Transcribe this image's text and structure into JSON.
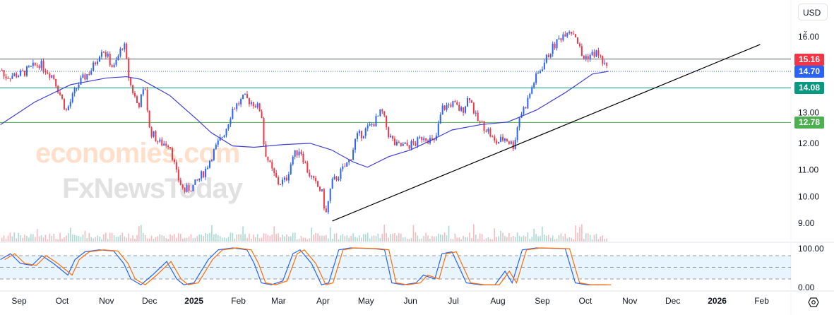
{
  "header": {
    "currency": "USD"
  },
  "watermark": {
    "line1": "economies.com",
    "line2": "FxNewsToday"
  },
  "chart_data": {
    "type": "candlestick",
    "colors": {
      "up": "#2962ff",
      "down": "#f23645",
      "ma": "#3f3fd6",
      "trendline": "#000000"
    },
    "x_start": "2024-09-01",
    "price_path_days_prices": [
      [
        -11,
        14.5
      ],
      [
        1.5,
        14.6
      ],
      [
        14,
        15.0
      ],
      [
        24,
        14.5
      ],
      [
        33,
        13.2
      ],
      [
        41,
        14.2
      ],
      [
        51,
        14.8
      ],
      [
        58,
        15.6
      ],
      [
        66,
        14.8
      ],
      [
        73,
        15.8
      ],
      [
        77,
        14.3
      ],
      [
        83,
        13.4
      ],
      [
        88,
        14.1
      ],
      [
        91,
        12.5
      ],
      [
        98,
        12.0
      ],
      [
        105,
        12.0
      ],
      [
        110,
        10.8
      ],
      [
        115,
        10.2
      ],
      [
        122,
        10.4
      ],
      [
        130,
        11.0
      ],
      [
        134,
        11.5
      ],
      [
        139,
        12.0
      ],
      [
        144,
        12.5
      ],
      [
        149,
        13.3
      ],
      [
        157,
        13.7
      ],
      [
        164,
        13.5
      ],
      [
        169,
        13.2
      ],
      [
        171,
        11.8
      ],
      [
        176,
        11.0
      ],
      [
        181,
        10.5
      ],
      [
        186,
        10.6
      ],
      [
        191,
        11.5
      ],
      [
        196,
        11.8
      ],
      [
        201,
        11.0
      ],
      [
        206,
        10.5
      ],
      [
        211,
        10.2
      ],
      [
        214,
        9.3
      ],
      [
        218,
        10.5
      ],
      [
        223,
        10.8
      ],
      [
        231,
        11.4
      ],
      [
        235,
        12.2
      ],
      [
        240,
        12.4
      ],
      [
        248,
        12.8
      ],
      [
        253,
        13.2
      ],
      [
        258,
        12.3
      ],
      [
        263,
        11.9
      ],
      [
        270,
        11.9
      ],
      [
        277,
        12.0
      ],
      [
        282,
        12.3
      ],
      [
        290,
        12.0
      ],
      [
        295,
        13.3
      ],
      [
        302,
        13.5
      ],
      [
        309,
        13.2
      ],
      [
        314,
        13.8
      ],
      [
        319,
        12.9
      ],
      [
        327,
        12.5
      ],
      [
        332,
        12.0
      ],
      [
        339,
        12.2
      ],
      [
        345,
        11.9
      ],
      [
        349,
        13.0
      ],
      [
        354,
        13.5
      ],
      [
        359,
        14.3
      ],
      [
        364,
        14.8
      ],
      [
        371,
        15.5
      ],
      [
        378,
        16.0
      ],
      [
        383,
        16.3
      ],
      [
        388,
        16.1
      ],
      [
        393,
        15.2
      ],
      [
        398,
        15.3
      ],
      [
        403,
        15.4
      ],
      [
        408,
        15.0
      ],
      [
        410,
        14.75
      ]
    ],
    "ma_path_days_prices": [
      [
        -13,
        12.7
      ],
      [
        11,
        13.55
      ],
      [
        36,
        14.2
      ],
      [
        61,
        14.45
      ],
      [
        75,
        14.5
      ],
      [
        85,
        14.4
      ],
      [
        105,
        13.8
      ],
      [
        124,
        12.9
      ],
      [
        134,
        12.4
      ],
      [
        149,
        11.9
      ],
      [
        164,
        11.85
      ],
      [
        184,
        11.95
      ],
      [
        203,
        12.0
      ],
      [
        218,
        11.75
      ],
      [
        233,
        11.3
      ],
      [
        243,
        11.1
      ],
      [
        258,
        11.5
      ],
      [
        273,
        11.75
      ],
      [
        287,
        12.1
      ],
      [
        302,
        12.5
      ],
      [
        322,
        12.7
      ],
      [
        341,
        12.8
      ],
      [
        361,
        13.25
      ],
      [
        381,
        13.9
      ],
      [
        400,
        14.6
      ],
      [
        411,
        14.7
      ]
    ],
    "trendline": {
      "from": [
        "2025-04-07",
        9.08
      ],
      "to": [
        "2026-02-03",
        15.71
      ]
    },
    "levels": [
      {
        "label": "15.16",
        "value": 15.16,
        "color": "#f23645",
        "line": "#5d606b",
        "style": "solid"
      },
      {
        "label": "14.70",
        "value": 14.7,
        "color": "#2962ff",
        "line": "#2962ff",
        "style": "dotted"
      },
      {
        "label": "14.08",
        "value": 14.08,
        "color": "#089981",
        "line": "#089981",
        "style": "solid"
      },
      {
        "label": "12.78",
        "value": 12.78,
        "color": "#4caf50",
        "line": "#4caf50",
        "style": "solid"
      }
    ],
    "y_ticks": [
      "16.00",
      "13.00",
      "12.00",
      "11.00",
      "10.00",
      "9.00"
    ],
    "y_tick_values": [
      16,
      13,
      12,
      11,
      10,
      9
    ],
    "x_ticks": [
      {
        "label": "Sep",
        "d": 0
      },
      {
        "label": "Oct",
        "d": 30
      },
      {
        "label": "Nov",
        "d": 61
      },
      {
        "label": "Dec",
        "d": 91
      },
      {
        "label": "2025",
        "d": 122
      },
      {
        "label": "Feb",
        "d": 153
      },
      {
        "label": "Mar",
        "d": 181
      },
      {
        "label": "Apr",
        "d": 212
      },
      {
        "label": "May",
        "d": 242
      },
      {
        "label": "Jun",
        "d": 273
      },
      {
        "label": "Jul",
        "d": 303
      },
      {
        "label": "Aug",
        "d": 334
      },
      {
        "label": "Sep",
        "d": 365
      },
      {
        "label": "Oct",
        "d": 395
      },
      {
        "label": "Nov",
        "d": 426
      },
      {
        "label": "Dec",
        "d": 456
      },
      {
        "label": "2026",
        "d": 487
      },
      {
        "label": "Feb",
        "d": 518
      }
    ],
    "stochastic": {
      "ticks": [
        "100.00",
        "0.00"
      ],
      "bands": [
        80,
        50,
        20
      ],
      "k_path_days_values": [
        [
          -13,
          70
        ],
        [
          -6,
          85
        ],
        [
          1,
          60
        ],
        [
          9,
          55
        ],
        [
          16,
          80
        ],
        [
          24,
          60
        ],
        [
          34,
          30
        ],
        [
          39,
          70
        ],
        [
          46,
          90
        ],
        [
          56,
          95
        ],
        [
          66,
          92
        ],
        [
          73,
          60
        ],
        [
          78,
          20
        ],
        [
          85,
          5
        ],
        [
          93,
          30
        ],
        [
          103,
          65
        ],
        [
          110,
          20
        ],
        [
          115,
          5
        ],
        [
          122,
          10
        ],
        [
          132,
          70
        ],
        [
          139,
          95
        ],
        [
          149,
          100
        ],
        [
          159,
          95
        ],
        [
          164,
          60
        ],
        [
          169,
          10
        ],
        [
          176,
          5
        ],
        [
          184,
          15
        ],
        [
          191,
          85
        ],
        [
          196,
          95
        ],
        [
          204,
          60
        ],
        [
          211,
          5
        ],
        [
          216,
          10
        ],
        [
          223,
          95
        ],
        [
          231,
          100
        ],
        [
          248,
          98
        ],
        [
          255,
          95
        ],
        [
          260,
          10
        ],
        [
          268,
          5
        ],
        [
          277,
          10
        ],
        [
          282,
          30
        ],
        [
          290,
          20
        ],
        [
          295,
          85
        ],
        [
          302,
          90
        ],
        [
          312,
          10
        ],
        [
          322,
          5
        ],
        [
          332,
          5
        ],
        [
          339,
          40
        ],
        [
          344,
          10
        ],
        [
          351,
          95
        ],
        [
          361,
          100
        ],
        [
          381,
          98
        ],
        [
          388,
          10
        ],
        [
          396,
          5
        ],
        [
          410,
          5
        ]
      ]
    }
  }
}
